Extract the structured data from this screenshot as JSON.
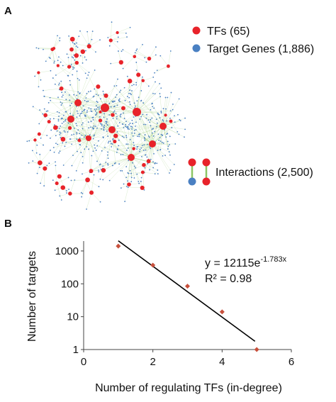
{
  "panel_a": {
    "label": "A",
    "legend": {
      "tfs": {
        "label": "TFs (65)",
        "color": "#e8232a"
      },
      "targets": {
        "label": "Target Genes (1,886)",
        "color": "#4a80c2"
      },
      "interactions": {
        "label": "Interactions (2,500)",
        "edge_color": "#8cc665"
      }
    },
    "network": {
      "tf_count": 65,
      "target_count": 1886,
      "edge_count": 2500
    }
  },
  "panel_b": {
    "label": "B",
    "equation_main": "y = 12115e",
    "equation_exp": "-1.783x",
    "r_squared": "R² = 0.98"
  },
  "chart_data": {
    "type": "scatter",
    "xlabel": "Number of regulating TFs (in-degree)",
    "ylabel": "Number of targets",
    "x_scale": "linear",
    "y_scale": "log",
    "xlim": [
      0,
      6
    ],
    "ylim": [
      1,
      2000
    ],
    "x_ticks": [
      "0",
      "2",
      "4",
      "6"
    ],
    "y_ticks": [
      "1",
      "10",
      "100",
      "1000"
    ],
    "points": [
      {
        "x": 1,
        "y": 1400
      },
      {
        "x": 2,
        "y": 370
      },
      {
        "x": 3,
        "y": 85
      },
      {
        "x": 4,
        "y": 14
      },
      {
        "x": 5,
        "y": 1
      }
    ],
    "marker_color": "#c8503c",
    "trendline": {
      "type": "exponential",
      "a": 12115,
      "b": -1.783,
      "x_range": [
        1,
        5
      ],
      "color": "#000000"
    },
    "grid": false,
    "legend": "none"
  }
}
